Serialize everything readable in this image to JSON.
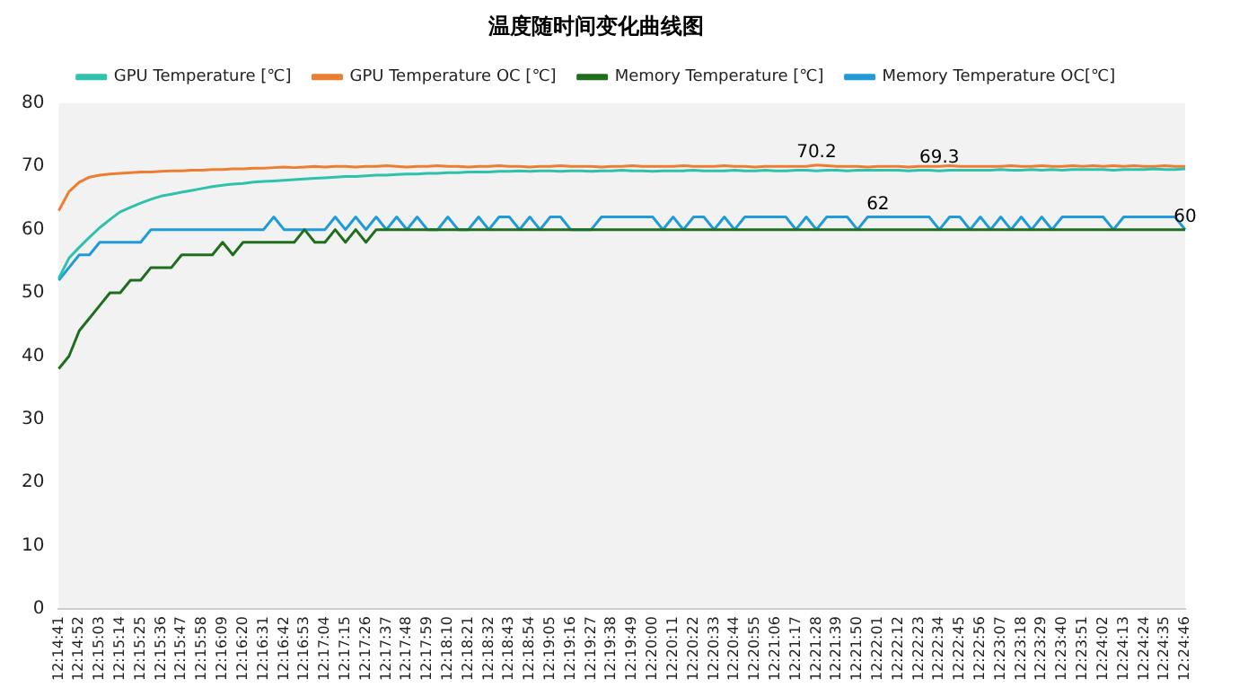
{
  "chart_data": {
    "type": "line",
    "title": "温度随时间变化曲线图",
    "categories": [
      "12:14:41",
      null,
      "12:14:52",
      null,
      "12:15:03",
      null,
      "12:15:14",
      null,
      "12:15:25",
      null,
      "12:15:36",
      null,
      "12:15:47",
      null,
      "12:15:58",
      null,
      "12:16:09",
      null,
      "12:16:20",
      null,
      "12:16:31",
      null,
      "12:16:42",
      null,
      "12:16:53",
      null,
      "12:17:04",
      null,
      "12:17:15",
      null,
      "12:17:26",
      null,
      "12:17:37",
      null,
      "12:17:48",
      null,
      "12:17:59",
      null,
      "12:18:10",
      null,
      "12:18:21",
      null,
      "12:18:32",
      null,
      "12:18:43",
      null,
      "12:18:54",
      null,
      "12:19:05",
      null,
      "12:19:16",
      null,
      "12:19:27",
      null,
      "12:19:38",
      null,
      "12:19:49",
      null,
      "12:20:00",
      null,
      "12:20:11",
      null,
      "12:20:22",
      null,
      "12:20:33",
      null,
      "12:20:44",
      null,
      "12:20:55",
      null,
      "12:21:06",
      null,
      "12:21:17",
      null,
      "12:21:28",
      null,
      "12:21:39",
      null,
      "12:21:50",
      null,
      "12:22:01",
      null,
      "12:22:12",
      null,
      "12:22:23",
      null,
      "12:22:34",
      null,
      "12:22:45",
      null,
      "12:22:56",
      null,
      "12:23:07",
      null,
      "12:23:18",
      null,
      "12:23:29",
      null,
      "12:23:40",
      null,
      "12:23:51",
      null,
      "12:24:02",
      null,
      "12:24:13",
      null,
      "12:24:24",
      null,
      "12:24:35",
      null,
      "12:24:46"
    ],
    "series": [
      {
        "name": "GPU Temperature [℃]",
        "color": "#2ec2ac",
        "values": [
          52.3,
          55.5,
          57.2,
          58.8,
          60.3,
          61.6,
          62.8,
          63.5,
          64.2,
          64.8,
          65.3,
          65.6,
          65.9,
          66.2,
          66.5,
          66.8,
          67,
          67.2,
          67.3,
          67.5,
          67.6,
          67.7,
          67.8,
          67.9,
          68,
          68.1,
          68.2,
          68.3,
          68.4,
          68.4,
          68.5,
          68.6,
          68.6,
          68.7,
          68.8,
          68.8,
          68.9,
          68.9,
          69,
          69,
          69.1,
          69.1,
          69.1,
          69.2,
          69.2,
          69.3,
          69.2,
          69.3,
          69.3,
          69.2,
          69.3,
          69.3,
          69.2,
          69.3,
          69.3,
          69.4,
          69.3,
          69.3,
          69.2,
          69.3,
          69.3,
          69.3,
          69.4,
          69.3,
          69.3,
          69.3,
          69.4,
          69.3,
          69.3,
          69.4,
          69.3,
          69.3,
          69.4,
          69.4,
          69.3,
          69.4,
          69.4,
          69.3,
          69.4,
          69.4,
          69.4,
          69.4,
          69.4,
          69.3,
          69.4,
          69.4,
          69.3,
          69.4,
          69.4,
          69.4,
          69.4,
          69.4,
          69.5,
          69.4,
          69.4,
          69.5,
          69.4,
          69.5,
          69.4,
          69.5,
          69.5,
          69.5,
          69.5,
          69.4,
          69.5,
          69.5,
          69.5,
          69.6,
          69.5,
          69.5,
          69.6
        ]
      },
      {
        "name": "GPU Temperature OC [℃]",
        "color": "#ed7d31",
        "values": [
          63,
          66,
          67.5,
          68.3,
          68.6,
          68.8,
          68.9,
          69,
          69.1,
          69.1,
          69.2,
          69.3,
          69.3,
          69.4,
          69.4,
          69.5,
          69.5,
          69.6,
          69.6,
          69.7,
          69.7,
          69.8,
          69.9,
          69.8,
          69.9,
          70,
          69.9,
          70,
          70,
          69.9,
          70,
          70,
          70.1,
          70,
          69.9,
          70,
          70,
          70.1,
          70,
          70,
          69.9,
          70,
          70,
          70.1,
          70,
          70,
          69.9,
          70,
          70,
          70.1,
          70,
          70,
          70,
          69.9,
          70,
          70,
          70.1,
          70,
          70,
          70,
          70,
          70.1,
          70,
          70,
          70,
          70.1,
          70,
          70,
          69.9,
          70,
          70,
          70,
          70,
          70,
          70.2,
          70.1,
          70,
          70,
          70,
          69.9,
          70,
          70,
          70,
          69.9,
          70,
          70,
          70,
          70.1,
          70,
          70,
          70,
          70,
          70,
          70.1,
          70,
          70,
          70.1,
          70,
          70,
          70.1,
          70,
          70.1,
          70,
          70.1,
          70,
          70.1,
          70,
          70,
          70.1,
          70,
          70
        ]
      },
      {
        "name": "Memory Temperature [℃]",
        "color": "#1e6e1e",
        "values": [
          38,
          40,
          44,
          46,
          48,
          50,
          50,
          52,
          52,
          54,
          54,
          54,
          56,
          56,
          56,
          56,
          58,
          56,
          58,
          58,
          58,
          58,
          58,
          58,
          60,
          58,
          58,
          60,
          58,
          60,
          58,
          60,
          60,
          60,
          60,
          60,
          60,
          60,
          60,
          60,
          60,
          60,
          60,
          60,
          60,
          60,
          60,
          60,
          60,
          60,
          60,
          60,
          60,
          60,
          60,
          60,
          60,
          60,
          60,
          60,
          60,
          60,
          60,
          60,
          60,
          60,
          60,
          60,
          60,
          60,
          60,
          60,
          60,
          60,
          60,
          60,
          60,
          60,
          60,
          60,
          60,
          60,
          60,
          60,
          60,
          60,
          60,
          60,
          60,
          60,
          60,
          60,
          60,
          60,
          60,
          60,
          60,
          60,
          60,
          60,
          60,
          60,
          60,
          60,
          60,
          60,
          60,
          60,
          60,
          60,
          60
        ]
      },
      {
        "name": "Memory Temperature OC[℃]",
        "color": "#1f9bd7",
        "values": [
          52,
          54,
          56,
          56,
          58,
          58,
          58,
          58,
          58,
          60,
          60,
          60,
          60,
          60,
          60,
          60,
          60,
          60,
          60,
          60,
          60,
          62,
          60,
          60,
          60,
          60,
          60,
          62,
          60,
          62,
          60,
          62,
          60,
          62,
          60,
          62,
          60,
          60,
          62,
          60,
          60,
          62,
          60,
          62,
          62,
          60,
          62,
          60,
          62,
          62,
          60,
          60,
          60,
          62,
          62,
          62,
          62,
          62,
          62,
          60,
          62,
          60,
          62,
          62,
          60,
          62,
          60,
          62,
          62,
          62,
          62,
          62,
          60,
          62,
          60,
          62,
          62,
          62,
          60,
          62,
          62,
          62,
          62,
          62,
          62,
          62,
          60,
          62,
          62,
          60,
          62,
          60,
          62,
          60,
          62,
          60,
          62,
          60,
          62,
          62,
          62,
          62,
          62,
          60,
          62,
          62,
          62,
          62,
          62,
          62,
          60
        ]
      }
    ],
    "ylim": [
      0,
      80
    ],
    "yticks": [
      0,
      10,
      20,
      30,
      40,
      50,
      60,
      70,
      80
    ],
    "legend": "top",
    "marker": "none",
    "line_style": "solid",
    "annotations": [
      {
        "text": "70.2",
        "x": "12:21:28",
        "y": 70.2
      },
      {
        "text": "69.3",
        "x": "12:22:34",
        "y": 69.3
      },
      {
        "text": "62",
        "x": "12:22:01",
        "y": 62
      },
      {
        "text": "60",
        "x": "12:24:46",
        "y": 60
      }
    ]
  }
}
